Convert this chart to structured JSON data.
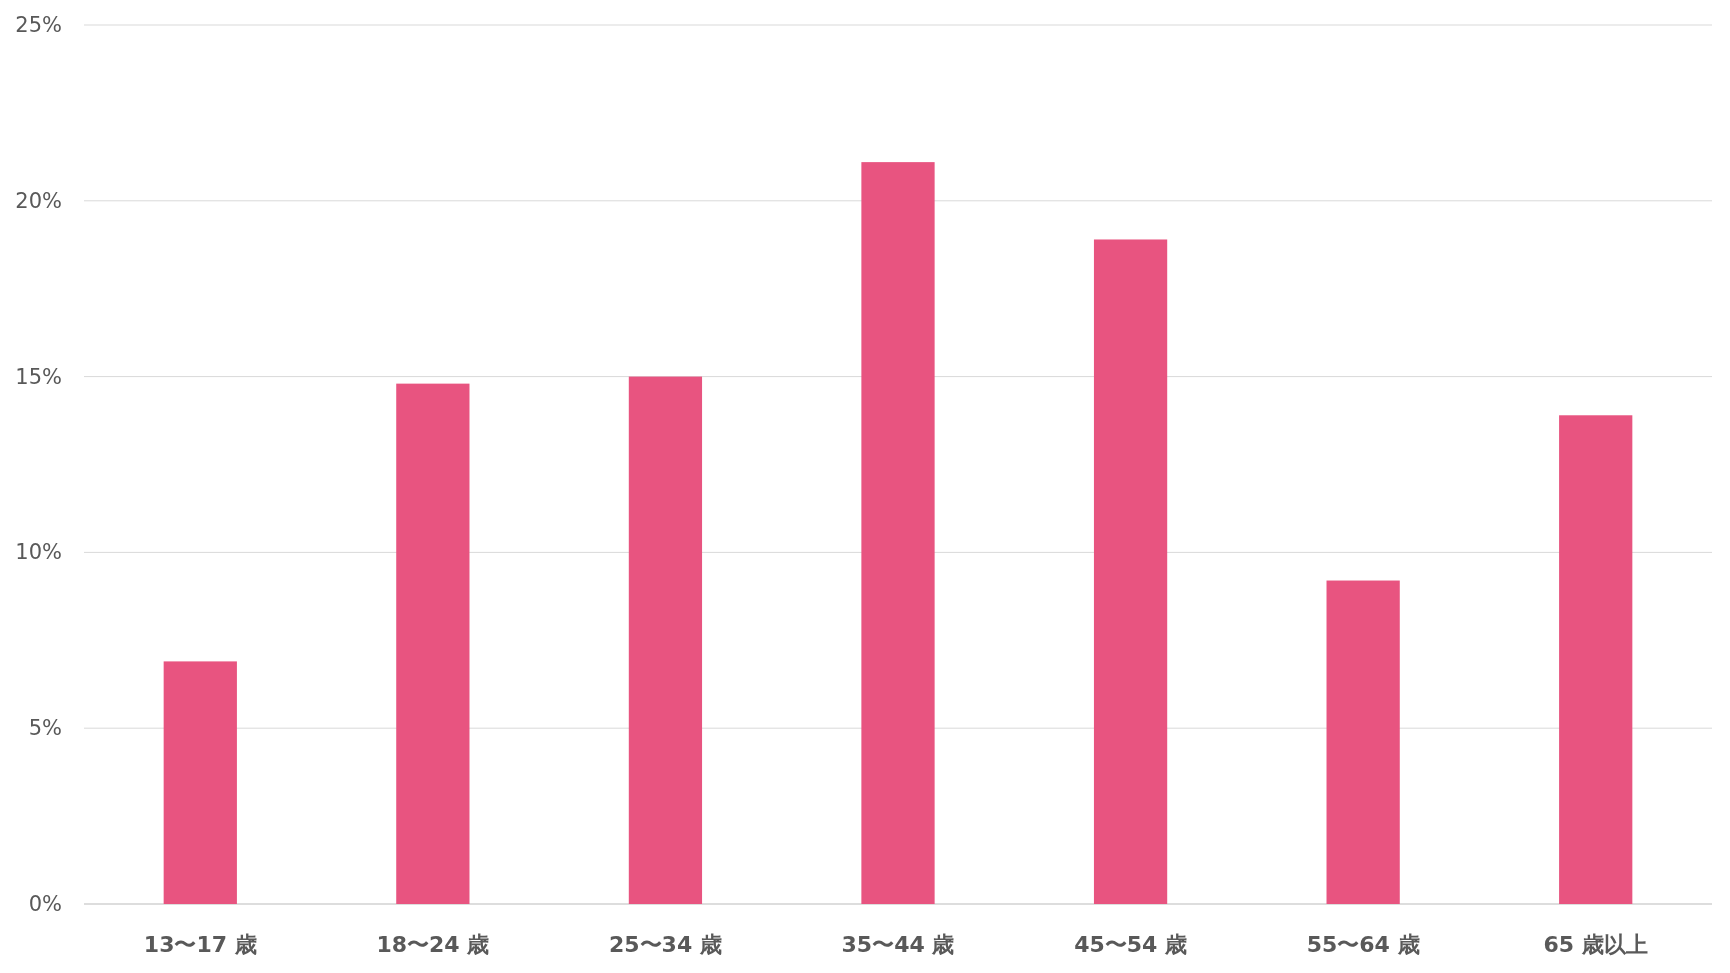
{
  "chart_data": {
    "type": "bar",
    "categories": [
      "13〜17 歳",
      "18〜24 歳",
      "25〜34 歳",
      "35〜44 歳",
      "45〜54 歳",
      "55〜64 歳",
      "65 歳以上"
    ],
    "values": [
      6.9,
      14.8,
      15.0,
      21.1,
      18.9,
      9.2,
      13.9
    ],
    "color": "#e85480",
    "ylim": [
      0,
      25
    ],
    "yticks": [
      {
        "value": 0,
        "label": "0%"
      },
      {
        "value": 5,
        "label": "5%"
      },
      {
        "value": 10,
        "label": "10%"
      },
      {
        "value": 15,
        "label": "15%"
      },
      {
        "value": 20,
        "label": "20%"
      },
      {
        "value": 25,
        "label": "25%"
      }
    ],
    "grid": "y"
  }
}
